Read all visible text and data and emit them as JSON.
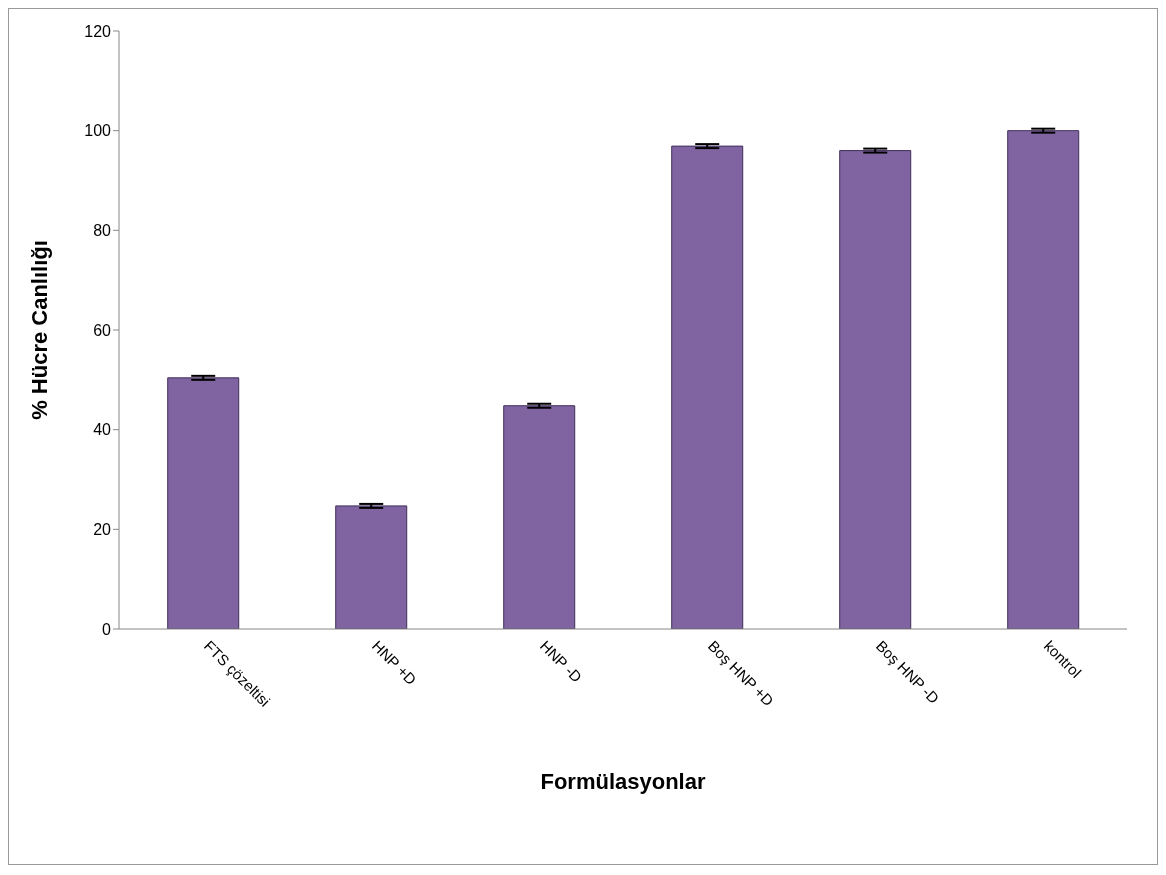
{
  "chart_data": {
    "type": "bar",
    "xlabel": "Formülasyonlar",
    "ylabel": "% Hücre Canlılığı",
    "categories": [
      "FTS çözeltisi",
      "HNP +D",
      "HNP -D",
      "Boş HNP +D",
      "Boş HNP -D",
      "kontrol"
    ],
    "values": [
      50.4,
      24.7,
      44.8,
      96.9,
      96.0,
      100
    ],
    "errors": [
      0.4,
      0.4,
      0.4,
      0.4,
      0.4,
      0.4
    ],
    "color": "#8064a2",
    "ylim": [
      0,
      120
    ],
    "yticks": [
      0,
      20,
      40,
      60,
      80,
      100,
      120
    ],
    "grid": false,
    "legend": false
  }
}
